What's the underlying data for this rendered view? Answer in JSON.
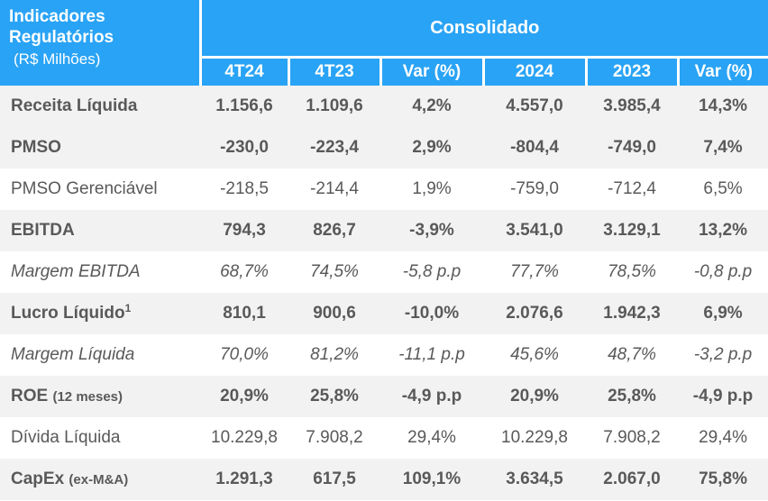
{
  "header": {
    "title_line1": "Indicadores",
    "title_line2": "Regulatórios",
    "unit": "(R$ Milhões)",
    "group": "Consolidado",
    "columns": [
      "4T24",
      "4T23",
      "Var (%)",
      "2024",
      "2023",
      "Var (%)"
    ]
  },
  "rows": [
    {
      "label": "Receita Líquida",
      "suffix": "",
      "sup": "",
      "values": [
        "1.156,6",
        "1.109,6",
        "4,2%",
        "4.557,0",
        "3.985,4",
        "14,3%"
      ]
    },
    {
      "label": "PMSO",
      "suffix": "",
      "sup": "",
      "values": [
        "-230,0",
        "-223,4",
        "2,9%",
        "-804,4",
        "-749,0",
        "7,4%"
      ]
    },
    {
      "label": "PMSO Gerenciável",
      "suffix": "",
      "sup": "",
      "values": [
        "-218,5",
        "-214,4",
        "1,9%",
        "-759,0",
        "-712,4",
        "6,5%"
      ]
    },
    {
      "label": "EBITDA",
      "suffix": "",
      "sup": "",
      "values": [
        "794,3",
        "826,7",
        "-3,9%",
        "3.541,0",
        "3.129,1",
        "13,2%"
      ]
    },
    {
      "label": "Margem EBITDA",
      "suffix": "",
      "sup": "",
      "values": [
        "68,7%",
        "74,5%",
        "-5,8 p.p",
        "77,7%",
        "78,5%",
        "-0,8 p.p"
      ]
    },
    {
      "label": "Lucro Líquido",
      "suffix": "",
      "sup": "1",
      "values": [
        "810,1",
        "900,6",
        "-10,0%",
        "2.076,6",
        "1.942,3",
        "6,9%"
      ]
    },
    {
      "label": "Margem Líquida",
      "suffix": "",
      "sup": "",
      "values": [
        "70,0%",
        "81,2%",
        "-11,1 p.p",
        "45,6%",
        "48,7%",
        "-3,2 p.p"
      ]
    },
    {
      "label": "ROE",
      "suffix": "(12 meses)",
      "sup": "",
      "values": [
        "20,9%",
        "25,8%",
        "-4,9 p.p",
        "20,9%",
        "25,8%",
        "-4,9 p.p"
      ]
    },
    {
      "label": "Dívida Líquida",
      "suffix": "",
      "sup": "",
      "values": [
        "10.229,8",
        "7.908,2",
        "29,4%",
        "10.229,8",
        "7.908,2",
        "29,4%"
      ]
    },
    {
      "label": "CapEx",
      "suffix": "(ex-M&A)",
      "sup": "",
      "values": [
        "1.291,3",
        "617,5",
        "109,1%",
        "3.634,5",
        "2.067,0",
        "75,8%"
      ]
    }
  ]
}
